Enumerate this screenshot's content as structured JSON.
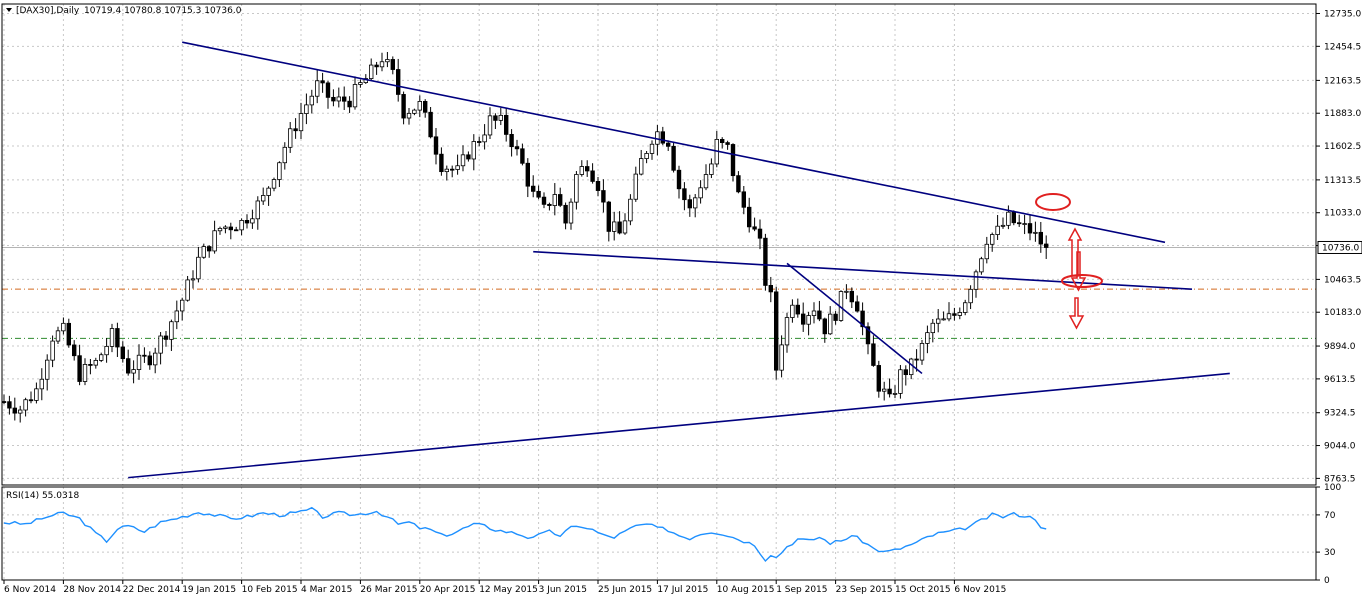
{
  "chart_data": {
    "type": "candlestick",
    "main": {
      "symbol_label": "[DAX30],Daily",
      "ohlc_label": "10719.4 10780.8 10715.3 10736.0",
      "ylim": [
        8707,
        12816
      ],
      "y_ticks": [
        "12735.0",
        "12454.5",
        "12163.5",
        "11883.0",
        "11602.5",
        "11313.5",
        "11033.0",
        "10752.5",
        "10463.5",
        "10183.0",
        "9894.0",
        "9613.5",
        "9324.5",
        "9044.0",
        "8763.5"
      ],
      "last_price": "10736.0",
      "last_price_value": 10736,
      "horizontal_levels": [
        {
          "value": 10380,
          "style": "dash-dot",
          "color": "#d2691e"
        },
        {
          "value": 9960,
          "style": "dash-dot",
          "color": "#2e8b2e"
        }
      ],
      "trendlines": [
        {
          "from": {
            "t": 33,
            "v": 12490
          },
          "to": {
            "t": 215,
            "v": 10780
          }
        },
        {
          "from": {
            "t": 98,
            "v": 10700
          },
          "to": {
            "t": 220,
            "v": 10380
          }
        },
        {
          "from": {
            "t": 145,
            "v": 10600
          },
          "to": {
            "t": 170,
            "v": 9660
          }
        },
        {
          "from": {
            "t": 23,
            "v": 8770
          },
          "to": {
            "t": 227,
            "v": 9660
          }
        }
      ],
      "marker_color": "#e02020"
    },
    "rsi": {
      "label": "RSI(14) 55.0318",
      "ylim": [
        0,
        100
      ],
      "y_ticks": [
        "100",
        "70",
        "30",
        "0"
      ],
      "levels": [
        70,
        30
      ]
    },
    "x_ticks": [
      "6 Nov 2014",
      "28 Nov 2014",
      "22 Dec 2014",
      "19 Jan 2015",
      "10 Feb 2015",
      "4 Mar 2015",
      "26 Mar 2015",
      "20 Apr 2015",
      "12 May 2015",
      "3 Jun 2015",
      "25 Jun 2015",
      "17 Jul 2015",
      "10 Aug 2015",
      "1 Sep 2015",
      "23 Sep 2015",
      "15 Oct 2015",
      "6 Nov 2015"
    ],
    "x_tick_index": [
      0,
      11,
      22,
      33,
      44,
      55,
      66,
      77,
      88,
      99,
      110,
      121,
      132,
      143,
      154,
      165,
      176
    ],
    "series_anchors": [
      [
        0,
        9420
      ],
      [
        3,
        9360
      ],
      [
        6,
        9520
      ],
      [
        9,
        9980
      ],
      [
        11,
        10020
      ],
      [
        14,
        9650
      ],
      [
        17,
        9750
      ],
      [
        20,
        9980
      ],
      [
        23,
        9700
      ],
      [
        27,
        9800
      ],
      [
        30,
        10020
      ],
      [
        33,
        10290
      ],
      [
        36,
        10630
      ],
      [
        40,
        10900
      ],
      [
        44,
        10950
      ],
      [
        48,
        11150
      ],
      [
        52,
        11600
      ],
      [
        55,
        11880
      ],
      [
        58,
        12120
      ],
      [
        61,
        11980
      ],
      [
        64,
        12000
      ],
      [
        66,
        12120
      ],
      [
        68,
        12230
      ],
      [
        70,
        12360
      ],
      [
        72,
        12210
      ],
      [
        74,
        11900
      ],
      [
        77,
        11950
      ],
      [
        79,
        11720
      ],
      [
        81,
        11450
      ],
      [
        84,
        11380
      ],
      [
        86,
        11550
      ],
      [
        88,
        11670
      ],
      [
        90,
        11820
      ],
      [
        92,
        11800
      ],
      [
        94,
        11650
      ],
      [
        96,
        11440
      ],
      [
        98,
        11180
      ],
      [
        100,
        11050
      ],
      [
        102,
        11210
      ],
      [
        104,
        10950
      ],
      [
        106,
        11350
      ],
      [
        108,
        11460
      ],
      [
        110,
        11280
      ],
      [
        112,
        10920
      ],
      [
        114,
        10850
      ],
      [
        116,
        11130
      ],
      [
        118,
        11470
      ],
      [
        120,
        11680
      ],
      [
        121,
        11720
      ],
      [
        123,
        11650
      ],
      [
        125,
        11250
      ],
      [
        127,
        11050
      ],
      [
        129,
        11280
      ],
      [
        131,
        11450
      ],
      [
        132,
        11620
      ],
      [
        134,
        11580
      ],
      [
        136,
        11180
      ],
      [
        138,
        10980
      ],
      [
        140,
        10750
      ],
      [
        141,
        10450
      ],
      [
        142,
        10300
      ],
      [
        143,
        9700
      ],
      [
        144,
        9950
      ],
      [
        146,
        10300
      ],
      [
        148,
        10150
      ],
      [
        150,
        10230
      ],
      [
        152,
        10050
      ],
      [
        154,
        10180
      ],
      [
        156,
        10400
      ],
      [
        158,
        10250
      ],
      [
        160,
        9850
      ],
      [
        162,
        9560
      ],
      [
        164,
        9420
      ],
      [
        166,
        9650
      ],
      [
        168,
        9720
      ],
      [
        170,
        9880
      ],
      [
        172,
        10080
      ],
      [
        174,
        10100
      ],
      [
        176,
        10160
      ],
      [
        178,
        10300
      ],
      [
        180,
        10550
      ],
      [
        182,
        10820
      ],
      [
        184,
        10870
      ],
      [
        186,
        10980
      ],
      [
        188,
        10920
      ],
      [
        190,
        10880
      ],
      [
        192,
        10780
      ],
      [
        193,
        10736
      ]
    ],
    "rsi_anchors": [
      [
        0,
        62
      ],
      [
        4,
        60
      ],
      [
        8,
        68
      ],
      [
        11,
        72
      ],
      [
        14,
        66
      ],
      [
        17,
        50
      ],
      [
        19,
        42
      ],
      [
        21,
        55
      ],
      [
        23,
        58
      ],
      [
        26,
        52
      ],
      [
        29,
        62
      ],
      [
        33,
        68
      ],
      [
        36,
        73
      ],
      [
        39,
        70
      ],
      [
        42,
        66
      ],
      [
        45,
        68
      ],
      [
        48,
        72
      ],
      [
        51,
        70
      ],
      [
        54,
        72
      ],
      [
        57,
        76
      ],
      [
        59,
        68
      ],
      [
        62,
        72
      ],
      [
        65,
        70
      ],
      [
        67,
        72
      ],
      [
        69,
        74
      ],
      [
        71,
        68
      ],
      [
        73,
        60
      ],
      [
        75,
        62
      ],
      [
        77,
        56
      ],
      [
        79,
        54
      ],
      [
        81,
        48
      ],
      [
        83,
        50
      ],
      [
        85,
        55
      ],
      [
        87,
        60
      ],
      [
        89,
        58
      ],
      [
        91,
        54
      ],
      [
        93,
        52
      ],
      [
        95,
        50
      ],
      [
        97,
        46
      ],
      [
        99,
        48
      ],
      [
        101,
        52
      ],
      [
        103,
        48
      ],
      [
        105,
        56
      ],
      [
        107,
        58
      ],
      [
        109,
        54
      ],
      [
        111,
        48
      ],
      [
        113,
        46
      ],
      [
        115,
        52
      ],
      [
        117,
        58
      ],
      [
        119,
        60
      ],
      [
        121,
        56
      ],
      [
        123,
        54
      ],
      [
        125,
        48
      ],
      [
        127,
        45
      ],
      [
        129,
        50
      ],
      [
        131,
        52
      ],
      [
        133,
        50
      ],
      [
        135,
        46
      ],
      [
        137,
        42
      ],
      [
        139,
        38
      ],
      [
        140,
        30
      ],
      [
        141,
        22
      ],
      [
        142,
        28
      ],
      [
        143,
        24
      ],
      [
        145,
        36
      ],
      [
        147,
        44
      ],
      [
        149,
        42
      ],
      [
        151,
        46
      ],
      [
        153,
        40
      ],
      [
        155,
        42
      ],
      [
        157,
        48
      ],
      [
        159,
        42
      ],
      [
        161,
        34
      ],
      [
        163,
        30
      ],
      [
        165,
        32
      ],
      [
        167,
        36
      ],
      [
        169,
        40
      ],
      [
        171,
        46
      ],
      [
        173,
        50
      ],
      [
        175,
        52
      ],
      [
        177,
        54
      ],
      [
        179,
        58
      ],
      [
        181,
        64
      ],
      [
        183,
        70
      ],
      [
        185,
        68
      ],
      [
        187,
        71
      ],
      [
        189,
        69
      ],
      [
        191,
        66
      ],
      [
        192,
        58
      ],
      [
        193,
        55
      ]
    ]
  }
}
